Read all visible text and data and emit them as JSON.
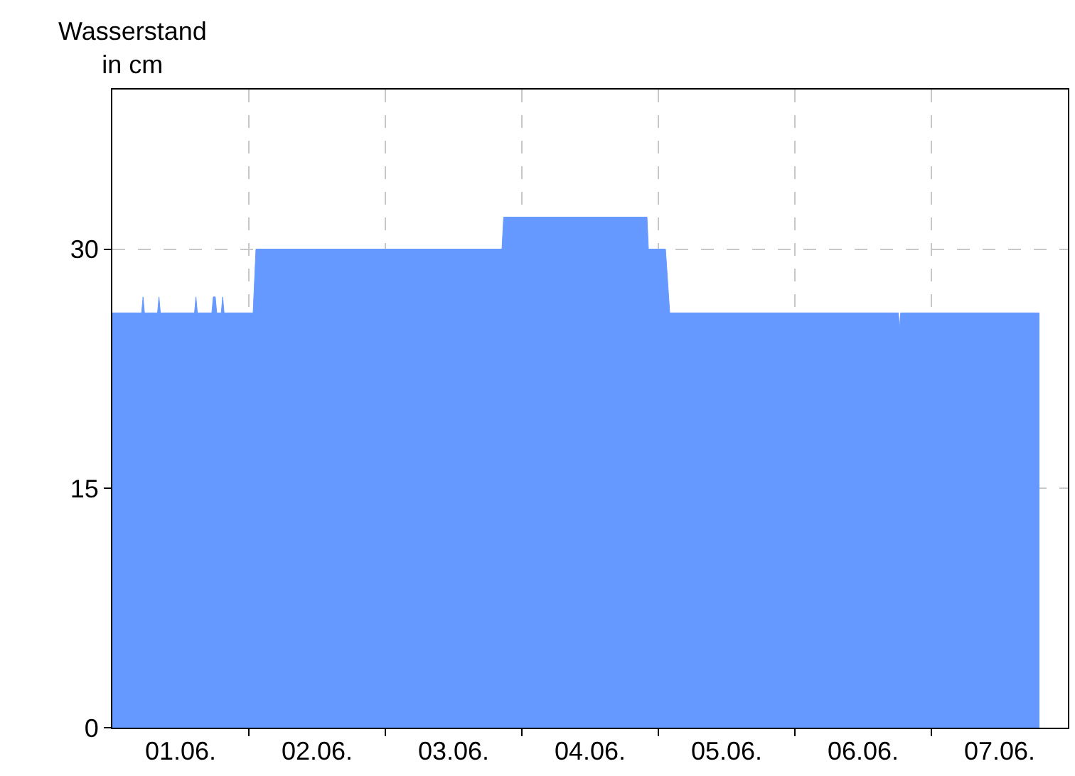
{
  "chart_data": {
    "type": "area",
    "ylabel": "Wasserstand\nin cm",
    "color": "#6699ff",
    "x": [
      "--06-01T00:00",
      "--06-01T05:09",
      "--06-01T05:24",
      "--06-01T05:39",
      "--06-01T07:57",
      "--06-01T08:12",
      "--06-01T08:27",
      "--06-01T14:27",
      "--06-01T14:42",
      "--06-01T14:57",
      "--06-01T17:30",
      "--06-01T17:45",
      "--06-01T18:06",
      "--06-01T18:21",
      "--06-01T19:09",
      "--06-01T19:24",
      "--06-01T19:39",
      "--06-02T00:45",
      "--06-02T01:15",
      "--06-03T20:30",
      "--06-03T20:48",
      "--06-04T22:00",
      "--06-04T22:15",
      "--06-05T01:15",
      "--06-05T02:00",
      "--06-06T18:12",
      "--06-06T18:24",
      "--06-06T18:36",
      "--06-07T19:00"
    ],
    "values": [
      26,
      26,
      27,
      26,
      26,
      27,
      26,
      26,
      27,
      26,
      26,
      27,
      27,
      26,
      26,
      27,
      26,
      26,
      30,
      30,
      32,
      32,
      30,
      30,
      26,
      26,
      25,
      26,
      26
    ],
    "xlim": [
      "--06-01T00:00",
      "--06-08T00:00"
    ],
    "xticks": [
      {
        "value": "--06-01T12:00",
        "label": "01.06."
      },
      {
        "value": "--06-02T00:00",
        "label": null
      },
      {
        "value": "--06-02T12:00",
        "label": "02.06."
      },
      {
        "value": "--06-03T00:00",
        "label": null
      },
      {
        "value": "--06-03T12:00",
        "label": "03.06."
      },
      {
        "value": "--06-04T00:00",
        "label": null
      },
      {
        "value": "--06-04T12:00",
        "label": "04.06."
      },
      {
        "value": "--06-05T00:00",
        "label": null
      },
      {
        "value": "--06-05T12:00",
        "label": "05.06."
      },
      {
        "value": "--06-06T00:00",
        "label": null
      },
      {
        "value": "--06-06T12:00",
        "label": "06.06."
      },
      {
        "value": "--06-07T00:00",
        "label": null
      },
      {
        "value": "--06-07T12:00",
        "label": "07.06."
      }
    ],
    "ylim": [
      0,
      40
    ],
    "yticks": [
      0,
      15,
      30
    ],
    "grid": true
  }
}
